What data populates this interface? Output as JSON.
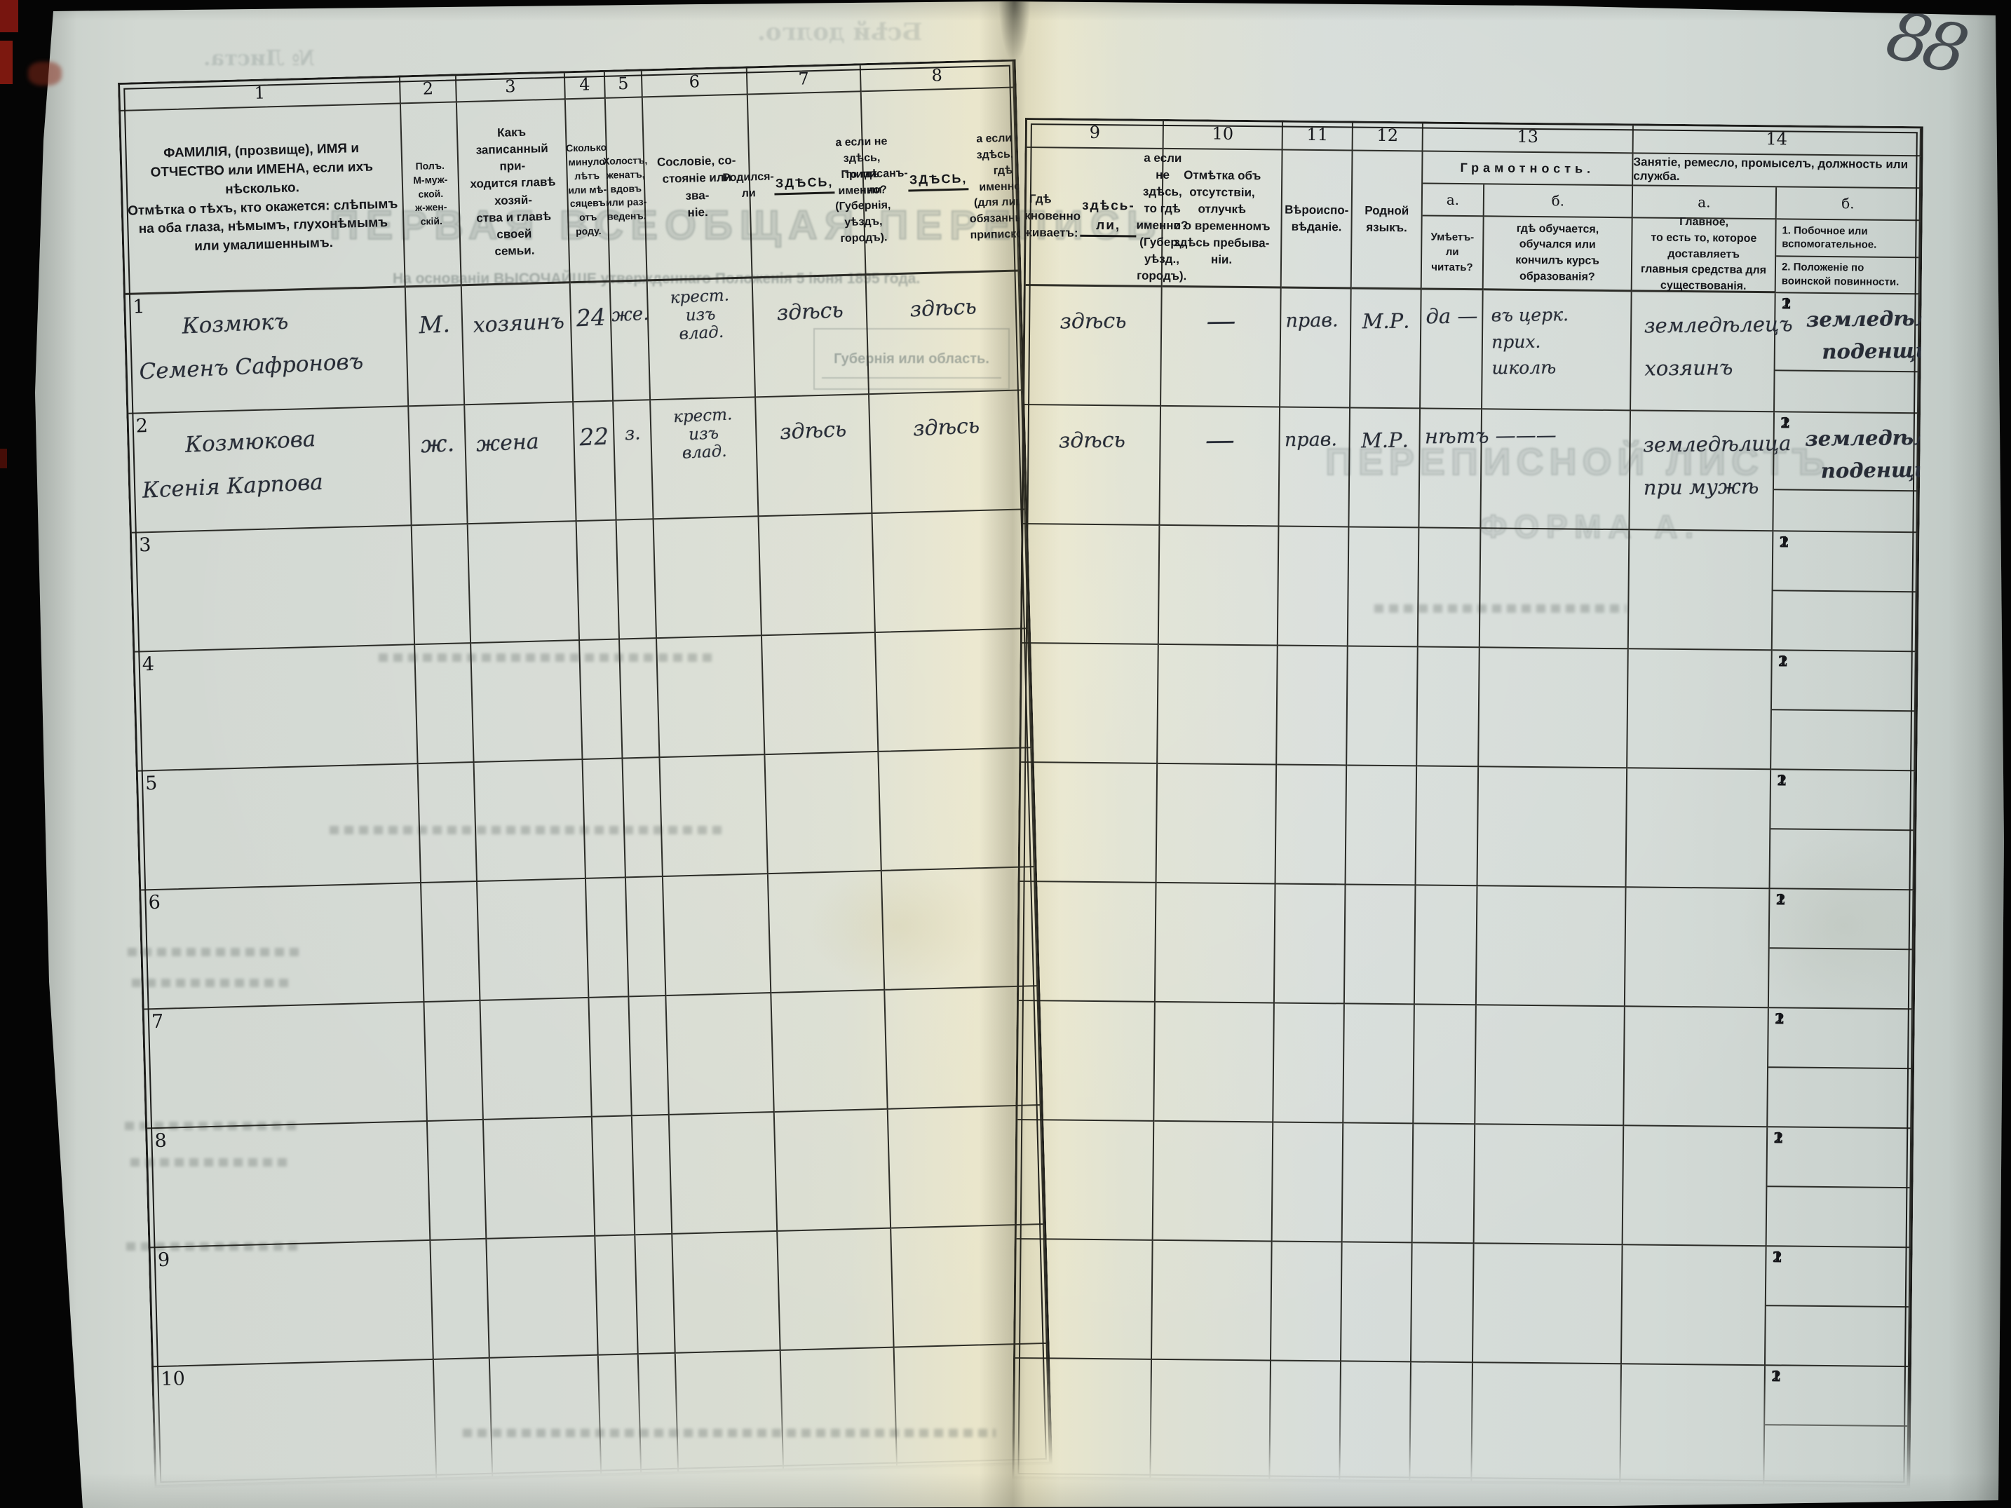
{
  "folio_number": "88",
  "colors": {
    "scan_background": "#050505",
    "paper_left": "#d2d8d2",
    "paper_fold": "#e9e5ca",
    "paper_right": "#d3dad6",
    "print_ink": "#1c1c1a",
    "hand_ink": "#272c36",
    "red_mark": "#77150f"
  },
  "left_columns": [
    {
      "num": "1",
      "title": "ФАМИЛІЯ, (прозвище), ИМЯ и ОТЧЕСТВО или ИМЕНА, если ихъ нѣсколько.\nОтмѣтка о тѣхъ, кто окажется: слѣпымъ на оба глаза, нѣмымъ, глухонѣмымъ или умалишеннымъ."
    },
    {
      "num": "2",
      "title": "Полъ.\nМ-муж-\nской.\nж-жен-\nскій."
    },
    {
      "num": "3",
      "title": "Какъ записанный при-\nходится главѣ хозяй-\nства и главѣ своей\nсемьи."
    },
    {
      "num": "4",
      "title": "Сколько\nминуло\nлѣтъ\nили мѣ-\nсяцевъ\nотъ роду."
    },
    {
      "num": "5",
      "title": "Холостъ,\nженатъ,\nвдовъ\nили раз-\nведенъ."
    },
    {
      "num": "6",
      "title": "Сословіе, со-\nстояніе или зва-\nніе."
    },
    {
      "num": "7",
      "title_pre": "Родился-ли ",
      "title_u": "ЗДѢСЬ,",
      "title_post": "\nа если не здѣсь,\nто гдѣ именно?\n(Губернія, уѣздъ, городъ)."
    },
    {
      "num": "8",
      "title_pre": "Приписанъ-ли ",
      "title_u": "ЗДѢСЬ,",
      "title_post": "\nа если не здѣсь, то гдѣ\nименно?\n(для лицъ, обязанныхъ\nприпискою)."
    }
  ],
  "right_columns": {
    "col9": {
      "num": "9",
      "title_pre": "Гдѣ обыкновенно\nпроживаетъ:\n",
      "title_u": "здѣсь-ли,",
      "title_post": " а если\nне здѣсь, то гдѣ\nименно?\n(Губер., уѣзд., городъ)."
    },
    "col10": {
      "num": "10",
      "title": "Отмѣтка объ\nотсутствіи, отлучкѣ\nи о временномъ\nздѣсь пребыва-\nніи."
    },
    "col11": {
      "num": "11",
      "title": "Вѣроиспо-\nвѣданіе."
    },
    "col12": {
      "num": "12",
      "title": "Родной\nязыкъ."
    },
    "col13": {
      "num": "13",
      "group": "Грамотность.",
      "a_label": "а.",
      "b_label": "б.",
      "a_title": "Умѣетъ-\nли\nчитать?",
      "b_title": "гдѣ обучается,\nобучался или\nкончилъ курсъ\nобразованія?"
    },
    "col14": {
      "num": "14",
      "group": "Занятіе, ремесло, промыселъ, должность или служба.",
      "a_label": "а.",
      "b_label": "б.",
      "a_title": "Главное,\nто есть то, которое доставляетъ\nглавныя средства для существованія.",
      "b1_title": "1.  Побочное или  вспомогательное.",
      "b2_title": "2.  Положеніе по воинской повинности.",
      "sub_row_labels": [
        "1",
        "2"
      ]
    }
  },
  "rows": [
    {
      "num": "1",
      "c1": "Козмюкъ\nСеменъ Сафроновъ",
      "c2": "М.",
      "c3": "хозяинъ",
      "c4": "24",
      "c5": "же.",
      "c6": "крест.\nизъ\nвлад.",
      "c7": "здѣсь",
      "c8": "здѣсь",
      "c9": "здѣсь",
      "c10": "—",
      "c11": "прав.",
      "c12": "М.Р.",
      "c13a": "да —",
      "c13b": "въ церк.\nприх.\nшколѣ",
      "c14a": "земледѣлецъ\nхозяинъ",
      "c14b1": "земледѣлецъ\nподенщикъ",
      "c14b2": ""
    },
    {
      "num": "2",
      "c1": "Козмюкова\nКсенія Карпова",
      "c2": "ж.",
      "c3": "жена",
      "c4": "22",
      "c5": "з.",
      "c6": "крест.\nизъ\nвлад.",
      "c7": "здѣсь",
      "c8": "здѣсь",
      "c9": "здѣсь",
      "c10": "—",
      "c11": "прав.",
      "c12": "М.Р.",
      "c13a": "нѣтъ ———",
      "c13b": "",
      "c14a": "земледѣлица\nпри мужѣ",
      "c14b1": "земледѣлица\nподенщица",
      "c14b2": ""
    },
    {
      "num": "3",
      "c1": "",
      "c2": "",
      "c3": "",
      "c4": "",
      "c5": "",
      "c6": "",
      "c7": "",
      "c8": "",
      "c9": "",
      "c10": "",
      "c11": "",
      "c12": "",
      "c13a": "",
      "c13b": "",
      "c14a": "",
      "c14b1": "",
      "c14b2": ""
    },
    {
      "num": "4",
      "c1": "",
      "c2": "",
      "c3": "",
      "c4": "",
      "c5": "",
      "c6": "",
      "c7": "",
      "c8": "",
      "c9": "",
      "c10": "",
      "c11": "",
      "c12": "",
      "c13a": "",
      "c13b": "",
      "c14a": "",
      "c14b1": "",
      "c14b2": ""
    },
    {
      "num": "5",
      "c1": "",
      "c2": "",
      "c3": "",
      "c4": "",
      "c5": "",
      "c6": "",
      "c7": "",
      "c8": "",
      "c9": "",
      "c10": "",
      "c11": "",
      "c12": "",
      "c13a": "",
      "c13b": "",
      "c14a": "",
      "c14b1": "",
      "c14b2": ""
    },
    {
      "num": "6",
      "c1": "",
      "c2": "",
      "c3": "",
      "c4": "",
      "c5": "",
      "c6": "",
      "c7": "",
      "c8": "",
      "c9": "",
      "c10": "",
      "c11": "",
      "c12": "",
      "c13a": "",
      "c13b": "",
      "c14a": "",
      "c14b1": "",
      "c14b2": ""
    },
    {
      "num": "7",
      "c1": "",
      "c2": "",
      "c3": "",
      "c4": "",
      "c5": "",
      "c6": "",
      "c7": "",
      "c8": "",
      "c9": "",
      "c10": "",
      "c11": "",
      "c12": "",
      "c13a": "",
      "c13b": "",
      "c14a": "",
      "c14b1": "",
      "c14b2": ""
    },
    {
      "num": "8",
      "c1": "",
      "c2": "",
      "c3": "",
      "c4": "",
      "c5": "",
      "c6": "",
      "c7": "",
      "c8": "",
      "c9": "",
      "c10": "",
      "c11": "",
      "c12": "",
      "c13a": "",
      "c13b": "",
      "c14a": "",
      "c14b1": "",
      "c14b2": ""
    },
    {
      "num": "9",
      "c1": "",
      "c2": "",
      "c3": "",
      "c4": "",
      "c5": "",
      "c6": "",
      "c7": "",
      "c8": "",
      "c9": "",
      "c10": "",
      "c11": "",
      "c12": "",
      "c13a": "",
      "c13b": "",
      "c14a": "",
      "c14b1": "",
      "c14b2": ""
    },
    {
      "num": "10",
      "c1": "",
      "c2": "",
      "c3": "",
      "c4": "",
      "c5": "",
      "c6": "",
      "c7": "",
      "c8": "",
      "c9": "",
      "c10": "",
      "c11": "",
      "c12": "",
      "c13a": "",
      "c13b": "",
      "c14a": "",
      "c14b1": "",
      "c14b2": ""
    }
  ],
  "ghosts": {
    "sheet_no": "№ Листа.",
    "spine_note": "Бсѣй долго.",
    "census_title": "ПЕРВАЯ ВСЕОБЩАЯ ПЕРЕПИСЬ",
    "law_line": "На основаніи ВЫСОЧАЙШЕ утвержденнаго Положенія 5 іюня 1895 года.",
    "province_box": "Губернія или область.",
    "list_title": "ПЕРЕПИСНОЙ ЛИСТЪ",
    "forma_label": "ФОРМА А."
  }
}
